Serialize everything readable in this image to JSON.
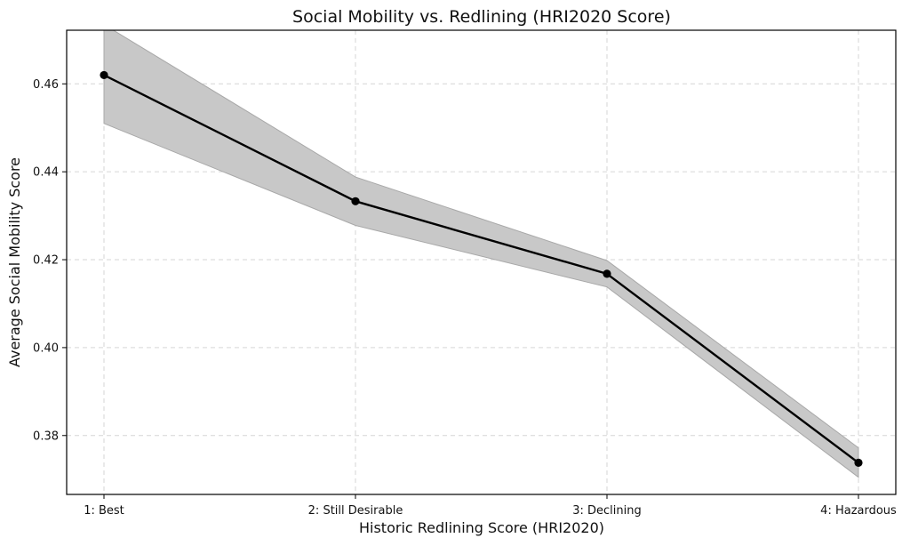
{
  "chart_data": {
    "type": "line",
    "title": "Social Mobility vs. Redlining (HRI2020 Score)",
    "xlabel": "Historic Redlining Score (HRI2020)",
    "ylabel": "Average Social Mobility Score",
    "categories": [
      "1: Best",
      "2: Still Desirable",
      "3: Declining",
      "4: Hazardous"
    ],
    "series": [
      {
        "values": [
          0.462,
          0.4333,
          0.4168,
          0.3738
        ],
        "lower": [
          0.451,
          0.4278,
          0.4138,
          0.3705
        ],
        "upper": [
          0.4735,
          0.4388,
          0.4198,
          0.3772
        ]
      }
    ],
    "ylim": [
      0.3666,
      0.4722
    ],
    "yticks": [
      0.38,
      0.4,
      0.42,
      0.44,
      0.46
    ],
    "ytick_labels": [
      "0.38",
      "0.40",
      "0.42",
      "0.44",
      "0.46"
    ],
    "grid": true,
    "band_color": "#c8c8c8",
    "band_edge_color": "#a8a8a8",
    "line_color": "#000000",
    "grid_color": "#d6d6d6"
  }
}
